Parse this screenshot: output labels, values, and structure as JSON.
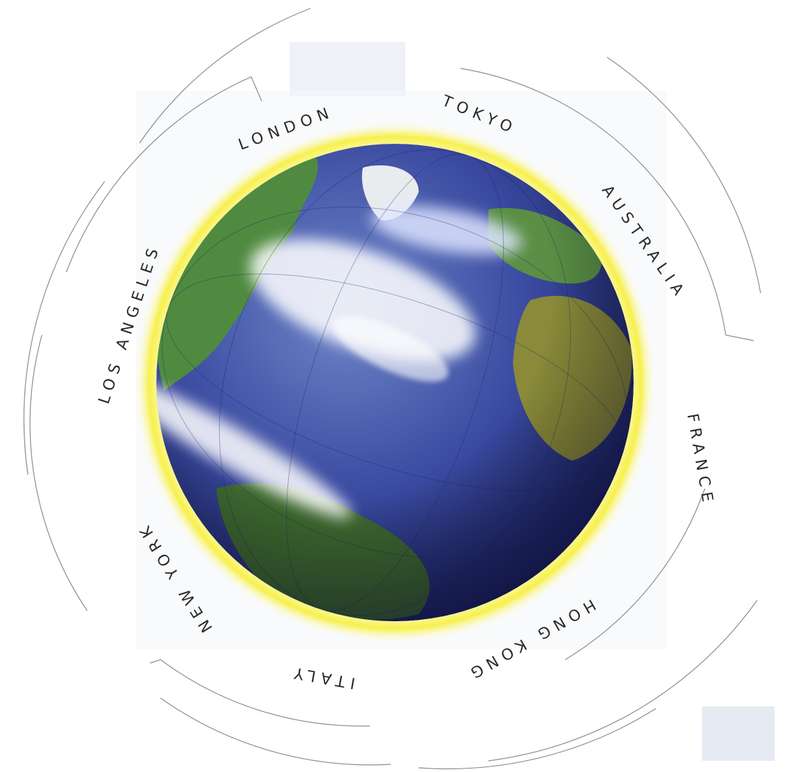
{
  "graphic": {
    "subject": "globe",
    "cities": [
      {
        "key": "london",
        "label": "LONDON"
      },
      {
        "key": "tokyo",
        "label": "TOKYO"
      },
      {
        "key": "australia",
        "label": "AUSTRALIA"
      },
      {
        "key": "france",
        "label": "FRANCE"
      },
      {
        "key": "hong-kong",
        "label": "HONG KONG"
      },
      {
        "key": "italy",
        "label": "ITALY"
      },
      {
        "key": "new-york",
        "label": "NEW YORK"
      },
      {
        "key": "los-angeles",
        "label": "LOS ANGELES"
      }
    ]
  },
  "colors": {
    "halo": "#f7f04a",
    "ocean": "#2f3d8f",
    "land": "#4e8a3e",
    "rings": "#8c8c8c",
    "text": "#2a2a2a"
  }
}
